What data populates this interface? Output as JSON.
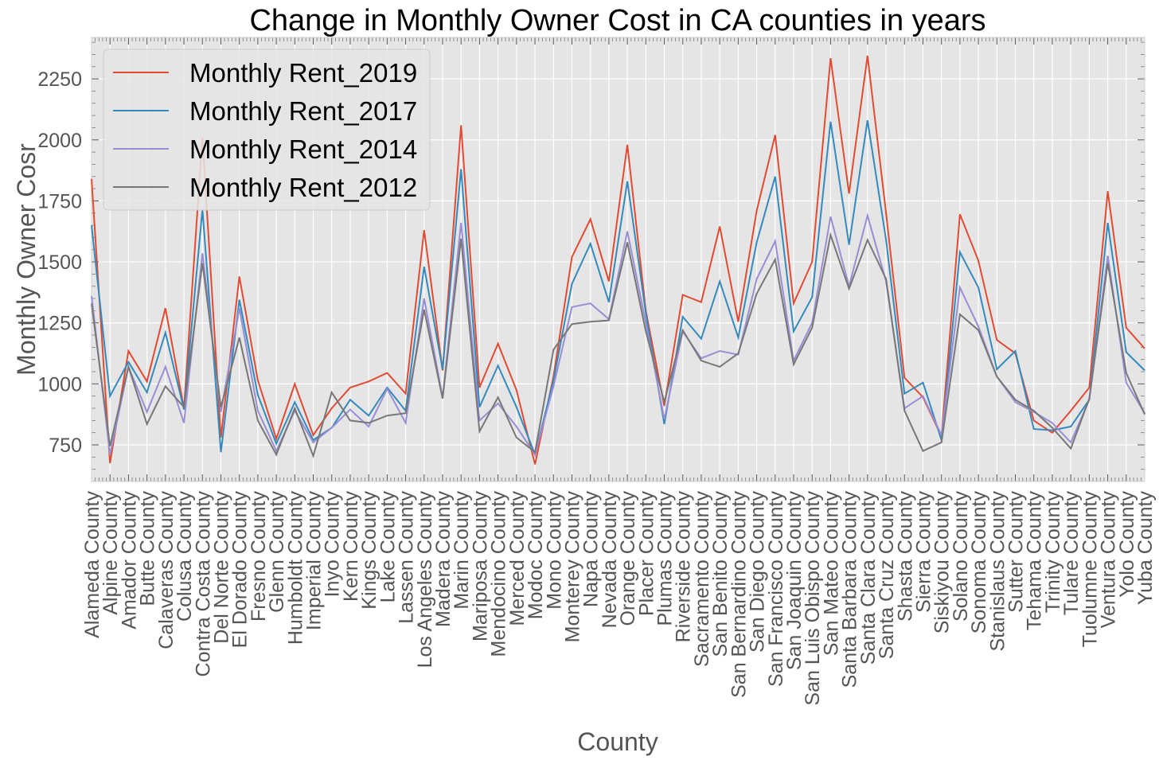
{
  "chart_data": {
    "type": "line",
    "title": "Change in Monthly Owner Cost in CA counties in years",
    "xlabel": "County",
    "ylabel": "Monthly Owner Cosr",
    "ylim": [
      600,
      2420
    ],
    "yticks": [
      750,
      1000,
      1250,
      1500,
      1750,
      2000,
      2250
    ],
    "grid": true,
    "legend_position": "top-left",
    "categories": [
      "Alameda County",
      "Alpine County",
      "Amador County",
      "Butte County",
      "Calaveras County",
      "Colusa County",
      "Contra Costa County",
      "Del Norte County",
      "El Dorado County",
      "Fresno County",
      "Glenn County",
      "Humboldt County",
      "Imperial County",
      "Inyo County",
      "Kern County",
      "Kings County",
      "Lake County",
      "Lassen County",
      "Los Angeles County",
      "Madera County",
      "Marin County",
      "Mariposa County",
      "Mendocino County",
      "Merced County",
      "Modoc County",
      "Mono County",
      "Monterey County",
      "Napa County",
      "Nevada County",
      "Orange County",
      "Placer County",
      "Plumas County",
      "Riverside County",
      "Sacramento County",
      "San Benito County",
      "San Bernardino County",
      "San Diego County",
      "San Francisco County",
      "San Joaquin County",
      "San Luis Obispo County",
      "San Mateo County",
      "Santa Barbara County",
      "Santa Clara County",
      "Santa Cruz County",
      "Shasta County",
      "Sierra County",
      "Siskiyou County",
      "Solano County",
      "Sonoma County",
      "Stanislaus County",
      "Sutter County",
      "Tehama County",
      "Trinity County",
      "Tulare County",
      "Tuolumne County",
      "Ventura County",
      "Yolo County",
      "Yuba County"
    ],
    "series": [
      {
        "name": "Monthly Rent_2019",
        "color": "#e24a33",
        "values": [
          1840,
          675,
          1135,
          1010,
          1310,
          900,
          2010,
          780,
          1440,
          1015,
          775,
          1000,
          790,
          900,
          985,
          1010,
          1045,
          960,
          1630,
          1055,
          2060,
          985,
          1165,
          975,
          670,
          1030,
          1520,
          1675,
          1420,
          1980,
          1300,
          910,
          1365,
          1335,
          1645,
          1255,
          1710,
          2020,
          1330,
          1500,
          2335,
          1780,
          2345,
          1700,
          1025,
          945,
          785,
          1695,
          1505,
          1180,
          1125,
          850,
          800,
          890,
          985,
          1790,
          1230,
          1145
        ]
      },
      {
        "name": "Monthly Rent_2017",
        "color": "#348abd",
        "values": [
          1650,
          950,
          1090,
          965,
          1210,
          895,
          1715,
          720,
          1345,
          955,
          755,
          925,
          770,
          820,
          935,
          870,
          985,
          890,
          1480,
          1060,
          1880,
          905,
          1075,
          905,
          710,
          1015,
          1410,
          1575,
          1335,
          1830,
          1290,
          835,
          1275,
          1185,
          1420,
          1190,
          1580,
          1850,
          1215,
          1355,
          2075,
          1570,
          2080,
          1590,
          960,
          1005,
          770,
          1540,
          1395,
          1060,
          1135,
          815,
          810,
          825,
          935,
          1660,
          1130,
          1055
        ]
      },
      {
        "name": "Monthly Rent_2014",
        "color": "#988ed5",
        "values": [
          1360,
          710,
          1070,
          885,
          1070,
          840,
          1535,
          885,
          1310,
          890,
          725,
          890,
          760,
          820,
          895,
          825,
          980,
          840,
          1350,
          945,
          1660,
          850,
          920,
          825,
          710,
          990,
          1315,
          1330,
          1265,
          1625,
          1250,
          855,
          1215,
          1105,
          1135,
          1120,
          1430,
          1585,
          1095,
          1250,
          1685,
          1400,
          1690,
          1420,
          900,
          950,
          790,
          1395,
          1235,
          1030,
          925,
          885,
          840,
          760,
          935,
          1525,
          1005,
          880
        ]
      },
      {
        "name": "Monthly Rent_2012",
        "color": "#777777",
        "values": [
          1330,
          745,
          1070,
          835,
          990,
          905,
          1495,
          905,
          1190,
          850,
          710,
          900,
          705,
          965,
          850,
          840,
          870,
          880,
          1305,
          940,
          1595,
          805,
          945,
          780,
          720,
          1140,
          1245,
          1255,
          1260,
          1580,
          1215,
          925,
          1220,
          1095,
          1070,
          1125,
          1370,
          1510,
          1080,
          1230,
          1610,
          1390,
          1590,
          1430,
          890,
          725,
          760,
          1285,
          1220,
          1030,
          935,
          890,
          820,
          735,
          940,
          1495,
          1045,
          875
        ]
      }
    ]
  }
}
